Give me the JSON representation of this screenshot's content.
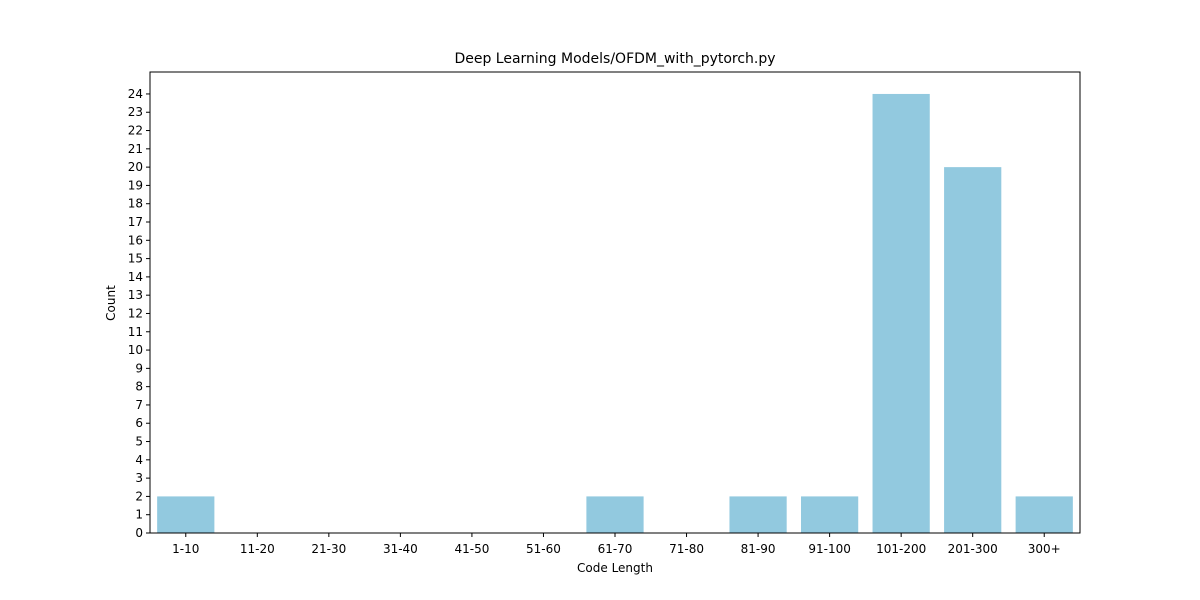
{
  "chart_data": {
    "type": "bar",
    "title": "Deep Learning Models/OFDM_with_pytorch.py",
    "xlabel": "Code Length",
    "ylabel": "Count",
    "categories": [
      "1-10",
      "11-20",
      "21-30",
      "31-40",
      "41-50",
      "51-60",
      "61-70",
      "71-80",
      "81-90",
      "91-100",
      "101-200",
      "201-300",
      "300+"
    ],
    "values": [
      2,
      0,
      0,
      0,
      0,
      0,
      2,
      0,
      2,
      2,
      24,
      20,
      2
    ],
    "ylim": [
      0,
      25.2
    ],
    "yticks": [
      0,
      1,
      2,
      3,
      4,
      5,
      6,
      7,
      8,
      9,
      10,
      11,
      12,
      13,
      14,
      15,
      16,
      17,
      18,
      19,
      20,
      21,
      22,
      23,
      24
    ],
    "grid": false,
    "legend": "none",
    "bar_color": "#92c9df"
  }
}
